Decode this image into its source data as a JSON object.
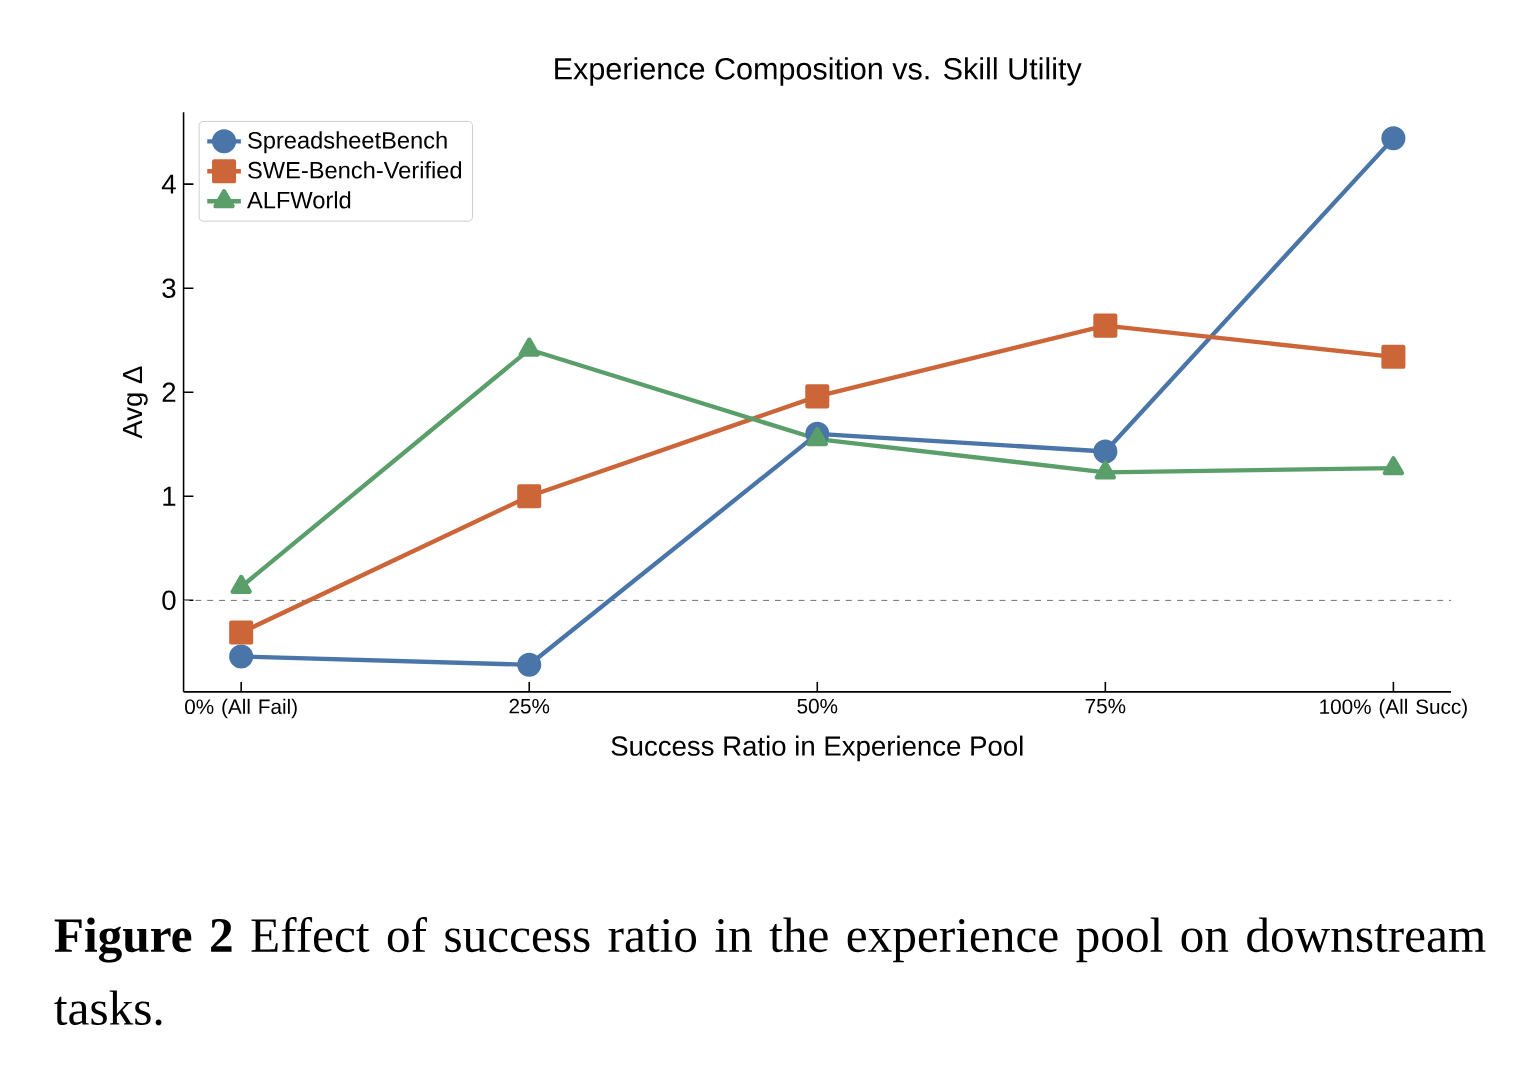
{
  "chart_data": {
    "type": "line",
    "title": "Experience Composition vs. Skill Utility",
    "xlabel": "Success Ratio in Experience Pool",
    "ylabel": "Avg Δ",
    "categories": [
      "0% (All Fail)",
      "25%",
      "50%",
      "75%",
      "100% (All Succ)"
    ],
    "series": [
      {
        "name": "SpreadsheetBench",
        "color": "#4a75a8",
        "marker": "circle",
        "values": [
          -0.54,
          -0.62,
          1.6,
          1.43,
          4.44
        ]
      },
      {
        "name": "SWE-Bench-Verified",
        "color": "#cc6538",
        "marker": "square",
        "values": [
          -0.31,
          1.0,
          1.96,
          2.64,
          2.34
        ]
      },
      {
        "name": "ALFWorld",
        "color": "#5a9e6a",
        "marker": "triangle",
        "values": [
          0.13,
          2.41,
          1.55,
          1.23,
          1.27
        ]
      }
    ],
    "ylim": [
      -0.88,
      4.69
    ],
    "yticks": [
      0,
      1,
      2,
      3,
      4
    ],
    "ref_lines": [
      {
        "axis": "y",
        "value": 0,
        "color": "#808080",
        "line_style": "dashed"
      }
    ],
    "legend": "top left",
    "grid": false,
    "line_style": "solid",
    "annotations": [
      "**Figure 2** Effect of success ratio in the experience pool on downstream tasks."
    ]
  }
}
